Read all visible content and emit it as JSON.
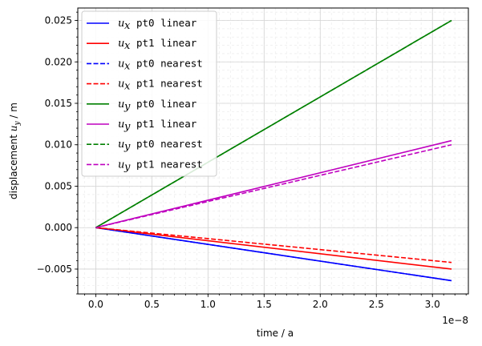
{
  "chart_data": {
    "type": "line",
    "xlabel": "time / a",
    "ylabel_prefix": "displacement ",
    "ylabel_var": "u",
    "ylabel_sub": "y",
    "ylabel_suffix": " / m",
    "x_offset_text": "1e−8",
    "xlim": [
      -1.6e-09,
      3.32e-08
    ],
    "ylim": [
      -0.008,
      0.0265
    ],
    "xticks": [
      0,
      5e-09,
      1e-08,
      1.5e-08,
      2e-08,
      2.5e-08,
      3e-08
    ],
    "xtick_labels": [
      "0.0",
      "0.5",
      "1.0",
      "1.5",
      "2.0",
      "2.5",
      "3.0"
    ],
    "yticks": [
      -0.005,
      0,
      0.005,
      0.01,
      0.015,
      0.02,
      0.025
    ],
    "ytick_labels": [
      "−0.005",
      "0.000",
      "0.005",
      "0.010",
      "0.015",
      "0.020",
      "0.025"
    ],
    "grid": "major solid, minor dashed",
    "legend_position": "upper-left",
    "series": [
      {
        "var": "u",
        "sub": "x",
        "name": "pt0 linear",
        "color": "#0000ff",
        "dash": "solid",
        "x": [
          0,
          3.17e-08
        ],
        "y": [
          0,
          -0.0064
        ]
      },
      {
        "var": "u",
        "sub": "x",
        "name": "pt1 linear",
        "color": "#ff0000",
        "dash": "solid",
        "x": [
          0,
          3.17e-08
        ],
        "y": [
          0,
          -0.005
        ]
      },
      {
        "var": "u",
        "sub": "x",
        "name": "pt0 nearest",
        "color": "#0000ff",
        "dash": "dashed",
        "x": [
          0,
          3.17e-08
        ],
        "y": [
          0,
          -0.0064
        ]
      },
      {
        "var": "u",
        "sub": "x",
        "name": "pt1 nearest",
        "color": "#ff0000",
        "dash": "dashed",
        "x": [
          0,
          3.17e-08
        ],
        "y": [
          0,
          -0.0042
        ]
      },
      {
        "var": "u",
        "sub": "y",
        "name": "pt0 linear",
        "color": "#008000",
        "dash": "solid",
        "x": [
          0,
          3.17e-08
        ],
        "y": [
          0,
          0.025
        ]
      },
      {
        "var": "u",
        "sub": "y",
        "name": "pt1 linear",
        "color": "#bf00bf",
        "dash": "solid",
        "x": [
          0,
          3.17e-08
        ],
        "y": [
          0,
          0.0105
        ]
      },
      {
        "var": "u",
        "sub": "y",
        "name": "pt0 nearest",
        "color": "#008000",
        "dash": "dashed",
        "x": [
          0,
          3.17e-08
        ],
        "y": [
          0,
          0.025
        ]
      },
      {
        "var": "u",
        "sub": "y",
        "name": "pt1 nearest",
        "color": "#bf00bf",
        "dash": "dashed",
        "x": [
          0,
          3.17e-08
        ],
        "y": [
          0,
          0.01
        ]
      }
    ]
  }
}
